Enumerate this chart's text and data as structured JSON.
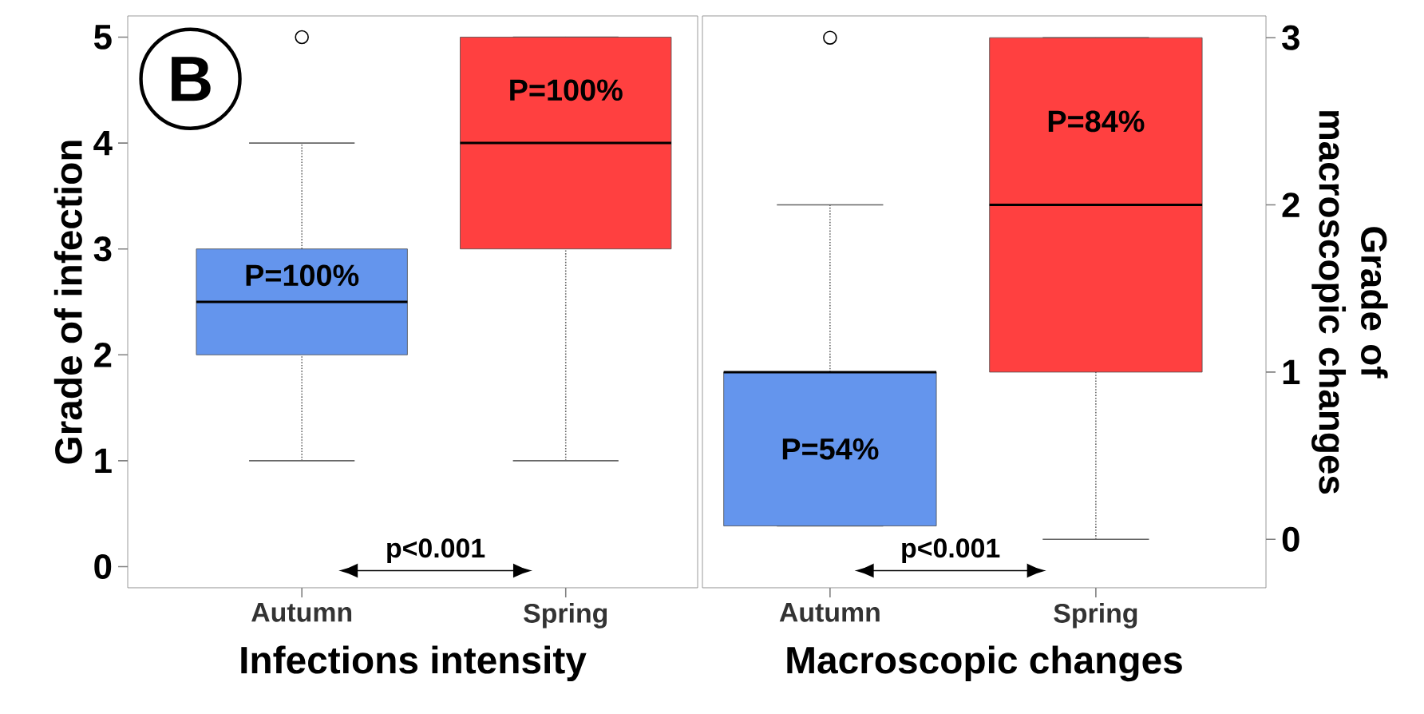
{
  "chart_data": [
    {
      "type": "box",
      "title": "B",
      "categories": [
        "Autumn",
        "Spring"
      ],
      "xlabel": "Infections intensity",
      "ylabel": "Grade of infection",
      "ylim": [
        -0.2,
        5.2
      ],
      "yticks": [
        0,
        1,
        2,
        3,
        4,
        5
      ],
      "colors": [
        "#6495ed",
        "#ff4040"
      ],
      "boxes": [
        {
          "low": 1,
          "q1": 2,
          "median": 2.5,
          "q3": 3,
          "high": 4,
          "outliers": [
            5
          ]
        },
        {
          "low": 1,
          "q1": 3,
          "median": 4,
          "q3": 5,
          "high": 5
        }
      ],
      "annotations": [
        "P=100%",
        "P=100%",
        "p<0.001"
      ]
    },
    {
      "type": "box",
      "categories": [
        "Autumn",
        "Spring"
      ],
      "xlabel": "Macroscopic changes",
      "y2label": "Grade of macroscopic changes",
      "y2lim": [
        -0.29,
        3.13
      ],
      "y2ticks": [
        0,
        1,
        2,
        3
      ],
      "series": [
        {
          "axis": "y2",
          "colors": [
            "#6495ed",
            "#ff4040"
          ],
          "boxes": [
            {
              "low": 0.08,
              "q1": 0.08,
              "median": 1,
              "q3": 1,
              "high": 2,
              "outliers": [
                3
              ]
            },
            {
              "low": 0,
              "q1": 1,
              "median": 2,
              "q3": 3,
              "high": 3
            }
          ]
        }
      ],
      "annotations": [
        "P=54%",
        "P=84%",
        "p<0.001"
      ]
    }
  ]
}
